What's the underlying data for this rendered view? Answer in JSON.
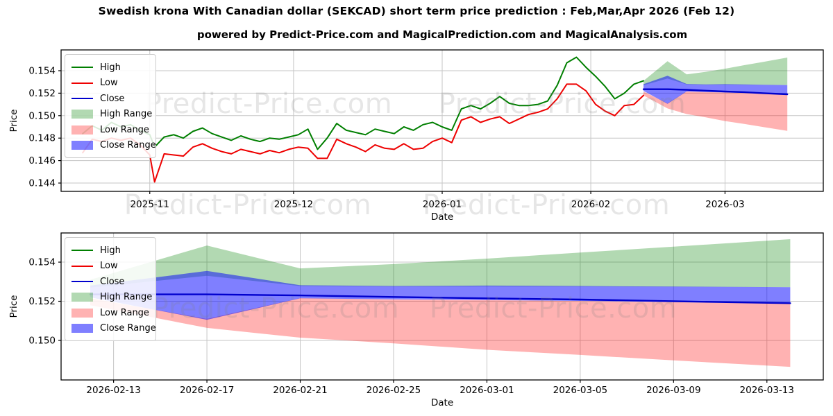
{
  "page_title": "Swedish krona With Canadian dollar (SEKCAD) short term price prediction : Feb,Mar,Apr 2026 (Feb 12)",
  "subtitle": "powered by Predict-Price.com and MagicalPrediction.com and MagicalAnalysis.com",
  "watermark": {
    "text": "Predict-Price.com"
  },
  "colors": {
    "high_line": "#007f00",
    "low_line": "#ee0000",
    "close_line": "#0000cd",
    "high_range_fill": "rgba(0,128,0,0.30)",
    "low_range_fill": "rgba(255,0,0,0.30)",
    "close_range_fill": "rgba(0,0,255,0.50)",
    "grid": "#c6c6c6",
    "spine": "#000000"
  },
  "chart_data": [
    {
      "name": "history-and-prediction-chart",
      "type": "line",
      "xlabel": "Date",
      "ylabel": "Price",
      "grid": true,
      "legend_position": "upper-left",
      "xlim": [
        "2025-10-13T12:00:00Z",
        "2026-03-21T12:00:00Z"
      ],
      "ylim": [
        0.14326,
        0.15585
      ],
      "yticks": [
        {
          "label": "0.144",
          "value": 0.144
        },
        {
          "label": "0.146",
          "value": 0.146
        },
        {
          "label": "0.148",
          "value": 0.148
        },
        {
          "label": "0.150",
          "value": 0.15
        },
        {
          "label": "0.152",
          "value": 0.152
        },
        {
          "label": "0.154",
          "value": 0.154
        }
      ],
      "xticks": [
        {
          "label": "2025-11",
          "date": "2025-11-01"
        },
        {
          "label": "2025-12",
          "date": "2025-12-01"
        },
        {
          "label": "2026-01",
          "date": "2026-01-01"
        },
        {
          "label": "2026-02",
          "date": "2026-02-01"
        },
        {
          "label": "2026-03",
          "date": "2026-03-01"
        }
      ],
      "legend": [
        {
          "label": "High",
          "type": "line",
          "color": "#007f00"
        },
        {
          "label": "Low",
          "type": "line",
          "color": "#ee0000"
        },
        {
          "label": "Close",
          "type": "line",
          "color": "#0000cd"
        },
        {
          "label": "High Range",
          "type": "band",
          "color": "rgba(0,128,0,0.30)"
        },
        {
          "label": "Low Range",
          "type": "band",
          "color": "rgba(255,0,0,0.30)"
        },
        {
          "label": "Close Range",
          "type": "band",
          "color": "rgba(0,0,255,0.50)"
        }
      ],
      "series": [
        {
          "name": "High Range",
          "kind": "band",
          "color": "rgba(0,128,0,0.30)",
          "x": [
            "2026-02-12",
            "2026-02-17",
            "2026-02-21",
            "2026-02-25",
            "2026-03-01",
            "2026-03-05",
            "2026-03-09",
            "2026-03-14"
          ],
          "top": [
            0.1531,
            0.15485,
            0.15368,
            0.1539,
            0.15418,
            0.15449,
            0.15479,
            0.15517
          ],
          "bottom": [
            0.1527,
            0.1533,
            0.15278,
            0.15275,
            0.15276,
            0.15275,
            0.15274,
            0.15272
          ]
        },
        {
          "name": "Low Range",
          "kind": "band",
          "color": "rgba(255,0,0,0.30)",
          "x": [
            "2026-02-12",
            "2026-02-17",
            "2026-02-21",
            "2026-02-25",
            "2026-03-01",
            "2026-03-05",
            "2026-03-09",
            "2026-03-14"
          ],
          "top": [
            0.15215,
            0.1511,
            0.15216,
            0.15209,
            0.15206,
            0.15201,
            0.15195,
            0.15188
          ],
          "bottom": [
            0.1518,
            0.15064,
            0.15014,
            0.14985,
            0.14952,
            0.14926,
            0.14898,
            0.14865
          ]
        },
        {
          "name": "Close Range",
          "kind": "band",
          "color": "rgba(0,0,255,0.50)",
          "x": [
            "2026-02-12",
            "2026-02-17",
            "2026-02-21",
            "2026-02-25",
            "2026-03-01",
            "2026-03-05",
            "2026-03-09",
            "2026-03-14"
          ],
          "top": [
            0.1528,
            0.15355,
            0.15282,
            0.15278,
            0.1528,
            0.15278,
            0.15275,
            0.15272
          ],
          "bottom": [
            0.1522,
            0.15105,
            0.15215,
            0.1521,
            0.15206,
            0.15202,
            0.15197,
            0.1519
          ]
        },
        {
          "name": "High",
          "kind": "line",
          "color": "#007f00",
          "width": 2,
          "x": [
            "2025-10-18",
            "2025-10-20",
            "2025-10-22",
            "2025-10-24",
            "2025-10-26",
            "2025-10-28",
            "2025-10-30",
            "2025-11-01",
            "2025-11-02",
            "2025-11-04",
            "2025-11-06",
            "2025-11-08",
            "2025-11-10",
            "2025-11-12",
            "2025-11-14",
            "2025-11-16",
            "2025-11-18",
            "2025-11-20",
            "2025-11-22",
            "2025-11-24",
            "2025-11-26",
            "2025-11-28",
            "2025-11-30",
            "2025-12-02",
            "2025-12-04",
            "2025-12-06",
            "2025-12-08",
            "2025-12-10",
            "2025-12-12",
            "2025-12-14",
            "2025-12-16",
            "2025-12-18",
            "2025-12-20",
            "2025-12-22",
            "2025-12-24",
            "2025-12-26",
            "2025-12-28",
            "2025-12-30",
            "2026-01-01",
            "2026-01-03",
            "2026-01-05",
            "2026-01-07",
            "2026-01-09",
            "2026-01-11",
            "2026-01-13",
            "2026-01-15",
            "2026-01-17",
            "2026-01-19",
            "2026-01-21",
            "2026-01-23",
            "2026-01-25",
            "2026-01-27",
            "2026-01-29",
            "2026-01-31",
            "2026-02-02",
            "2026-02-04",
            "2026-02-06",
            "2026-02-08",
            "2026-02-10",
            "2026-02-12"
          ],
          "y": [
            0.1484,
            0.1491,
            0.1487,
            0.1494,
            0.149,
            0.1492,
            0.1487,
            0.1483,
            0.1472,
            0.1481,
            0.1483,
            0.148,
            0.1486,
            0.1489,
            0.1484,
            0.1481,
            0.1478,
            0.1482,
            0.1479,
            0.1477,
            0.148,
            0.1479,
            0.1481,
            0.1483,
            0.1488,
            0.147,
            0.148,
            0.1493,
            0.1487,
            0.1485,
            0.1483,
            0.1488,
            0.1486,
            0.1484,
            0.149,
            0.1487,
            0.1492,
            0.1494,
            0.149,
            0.1487,
            0.1506,
            0.1509,
            0.1506,
            0.1511,
            0.1517,
            0.1511,
            0.1509,
            0.1509,
            0.151,
            0.1513,
            0.1527,
            0.1547,
            0.1552,
            0.1543,
            0.1535,
            0.1526,
            0.1515,
            0.152,
            0.1528,
            0.1531
          ]
        },
        {
          "name": "Low",
          "kind": "line",
          "color": "#ee0000",
          "width": 2,
          "x": [
            "2025-10-18",
            "2025-10-20",
            "2025-10-22",
            "2025-10-24",
            "2025-10-26",
            "2025-10-28",
            "2025-10-30",
            "2025-11-01",
            "2025-11-02",
            "2025-11-04",
            "2025-11-06",
            "2025-11-08",
            "2025-11-10",
            "2025-11-12",
            "2025-11-14",
            "2025-11-16",
            "2025-11-18",
            "2025-11-20",
            "2025-11-22",
            "2025-11-24",
            "2025-11-26",
            "2025-11-28",
            "2025-11-30",
            "2025-12-02",
            "2025-12-04",
            "2025-12-06",
            "2025-12-08",
            "2025-12-10",
            "2025-12-12",
            "2025-12-14",
            "2025-12-16",
            "2025-12-18",
            "2025-12-20",
            "2025-12-22",
            "2025-12-24",
            "2025-12-26",
            "2025-12-28",
            "2025-12-30",
            "2026-01-01",
            "2026-01-03",
            "2026-01-05",
            "2026-01-07",
            "2026-01-09",
            "2026-01-11",
            "2026-01-13",
            "2026-01-15",
            "2026-01-17",
            "2026-01-19",
            "2026-01-21",
            "2026-01-23",
            "2026-01-25",
            "2026-01-27",
            "2026-01-29",
            "2026-01-31",
            "2026-02-02",
            "2026-02-04",
            "2026-02-06",
            "2026-02-08",
            "2026-02-10",
            "2026-02-12"
          ],
          "y": [
            0.1467,
            0.1479,
            0.1477,
            0.148,
            0.1478,
            0.148,
            0.1474,
            0.1465,
            0.1441,
            0.1466,
            0.1465,
            0.1464,
            0.1472,
            0.1475,
            0.1471,
            0.1468,
            0.1466,
            0.147,
            0.1468,
            0.1466,
            0.1469,
            0.1467,
            0.147,
            0.1472,
            0.1471,
            0.1462,
            0.1462,
            0.1479,
            0.1475,
            0.1472,
            0.1468,
            0.1474,
            0.1471,
            0.147,
            0.1475,
            0.147,
            0.1471,
            0.1477,
            0.148,
            0.1476,
            0.1496,
            0.1499,
            0.1494,
            0.1497,
            0.1499,
            0.1493,
            0.1497,
            0.1501,
            0.1503,
            0.1506,
            0.1515,
            0.1528,
            0.1528,
            0.1522,
            0.151,
            0.1504,
            0.15,
            0.1509,
            0.151,
            0.1518
          ]
        },
        {
          "name": "Close",
          "kind": "line",
          "color": "#0000cd",
          "width": 2.4,
          "x": [
            "2026-02-12",
            "2026-02-17",
            "2026-02-21",
            "2026-02-25",
            "2026-03-01",
            "2026-03-05",
            "2026-03-09",
            "2026-03-14"
          ],
          "y": [
            0.15235,
            0.15235,
            0.1523,
            0.15222,
            0.15215,
            0.15209,
            0.152,
            0.1519
          ]
        }
      ]
    },
    {
      "name": "prediction-zoom-chart",
      "type": "line",
      "xlabel": "Date",
      "ylabel": "Price",
      "grid": true,
      "legend_position": "upper-left",
      "xlim": [
        "2026-02-10T18:00:00Z",
        "2026-03-15T10:00:00Z"
      ],
      "ylim": [
        0.14798,
        0.15549
      ],
      "yticks": [
        {
          "label": "0.150",
          "value": 0.15
        },
        {
          "label": "0.152",
          "value": 0.152
        },
        {
          "label": "0.154",
          "value": 0.154
        }
      ],
      "xticks": [
        {
          "label": "2026-02-13",
          "date": "2026-02-13"
        },
        {
          "label": "2026-02-17",
          "date": "2026-02-17"
        },
        {
          "label": "2026-02-21",
          "date": "2026-02-21"
        },
        {
          "label": "2026-02-25",
          "date": "2026-02-25"
        },
        {
          "label": "2026-03-01",
          "date": "2026-03-01"
        },
        {
          "label": "2026-03-05",
          "date": "2026-03-05"
        },
        {
          "label": "2026-03-09",
          "date": "2026-03-09"
        },
        {
          "label": "2026-03-13",
          "date": "2026-03-13"
        }
      ],
      "legend": [
        {
          "label": "High",
          "type": "line",
          "color": "#007f00"
        },
        {
          "label": "Low",
          "type": "line",
          "color": "#ee0000"
        },
        {
          "label": "Close",
          "type": "line",
          "color": "#0000cd"
        },
        {
          "label": "High Range",
          "type": "band",
          "color": "rgba(0,128,0,0.30)"
        },
        {
          "label": "Low Range",
          "type": "band",
          "color": "rgba(255,0,0,0.30)"
        },
        {
          "label": "Close Range",
          "type": "band",
          "color": "rgba(0,0,255,0.50)"
        }
      ],
      "series": [
        {
          "name": "High Range",
          "kind": "band",
          "color": "rgba(0,128,0,0.30)",
          "x": [
            "2026-02-12",
            "2026-02-17",
            "2026-02-21",
            "2026-02-25",
            "2026-03-01",
            "2026-03-05",
            "2026-03-09",
            "2026-03-14"
          ],
          "top": [
            0.1531,
            0.15485,
            0.15368,
            0.1539,
            0.15418,
            0.15449,
            0.15479,
            0.15517
          ],
          "bottom": [
            0.1527,
            0.1533,
            0.15278,
            0.15275,
            0.15276,
            0.15275,
            0.15274,
            0.15272
          ]
        },
        {
          "name": "Low Range",
          "kind": "band",
          "color": "rgba(255,0,0,0.30)",
          "x": [
            "2026-02-12",
            "2026-02-17",
            "2026-02-21",
            "2026-02-25",
            "2026-03-01",
            "2026-03-05",
            "2026-03-09",
            "2026-03-14"
          ],
          "top": [
            0.15215,
            0.1511,
            0.15216,
            0.15209,
            0.15206,
            0.15201,
            0.15195,
            0.15188
          ],
          "bottom": [
            0.1518,
            0.15064,
            0.15014,
            0.14985,
            0.14952,
            0.14926,
            0.14898,
            0.14865
          ]
        },
        {
          "name": "Close Range",
          "kind": "band",
          "color": "rgba(0,0,255,0.50)",
          "x": [
            "2026-02-12",
            "2026-02-17",
            "2026-02-21",
            "2026-02-25",
            "2026-03-01",
            "2026-03-05",
            "2026-03-09",
            "2026-03-14"
          ],
          "top": [
            0.1528,
            0.15355,
            0.15282,
            0.15278,
            0.1528,
            0.15278,
            0.15275,
            0.15272
          ],
          "bottom": [
            0.1522,
            0.15105,
            0.15215,
            0.1521,
            0.15206,
            0.15202,
            0.15197,
            0.1519
          ]
        },
        {
          "name": "Close",
          "kind": "line",
          "color": "#0000cd",
          "width": 2.4,
          "x": [
            "2026-02-12",
            "2026-02-17",
            "2026-02-21",
            "2026-02-25",
            "2026-03-01",
            "2026-03-05",
            "2026-03-09",
            "2026-03-14"
          ],
          "y": [
            0.15235,
            0.15235,
            0.1523,
            0.15222,
            0.15215,
            0.15209,
            0.152,
            0.1519
          ]
        }
      ]
    }
  ]
}
